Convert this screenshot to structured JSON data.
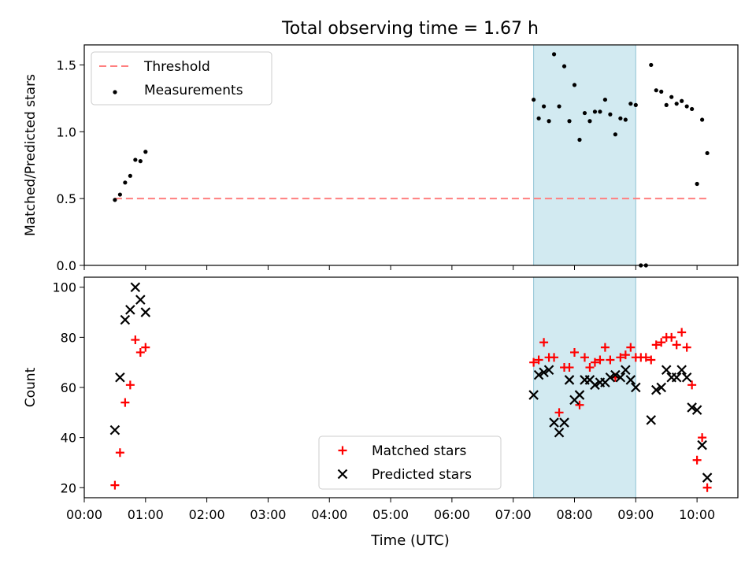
{
  "title": "Total observing time = 1.67 h",
  "xlabel": "Time (UTC)",
  "x_ticks": [
    "00:00",
    "01:00",
    "02:00",
    "03:00",
    "04:00",
    "05:00",
    "06:00",
    "07:00",
    "08:00",
    "09:00",
    "10:00"
  ],
  "colors": {
    "threshold": "#ff7f7f",
    "matched": "#ff0000",
    "predicted": "#000000",
    "measurements": "#000000",
    "shaded_window": "#add8e6"
  },
  "chart_data": [
    {
      "type": "scatter",
      "ylabel": "Matched/Predicted stars",
      "xlim": [
        "00:00",
        "10:40"
      ],
      "ylim": [
        0,
        1.65
      ],
      "y_ticks": [
        "0.0",
        "0.5",
        "1.0",
        "1.5"
      ],
      "y_tick_values": [
        0,
        0.5,
        1.0,
        1.5
      ],
      "shaded_window": [
        "07:20",
        "09:00"
      ],
      "threshold": {
        "name": "Threshold",
        "value": 0.5,
        "from": "00:30",
        "to": "10:10",
        "style": "dashed"
      },
      "legend_position": "upper-left",
      "legend": [
        "Threshold",
        "Measurements"
      ],
      "series": [
        {
          "name": "Measurements",
          "marker": "dot",
          "points": [
            [
              "00:30",
              0.49
            ],
            [
              "00:35",
              0.53
            ],
            [
              "00:40",
              0.62
            ],
            [
              "00:45",
              0.67
            ],
            [
              "00:50",
              0.79
            ],
            [
              "00:55",
              0.78
            ],
            [
              "01:00",
              0.85
            ],
            [
              "07:20",
              1.24
            ],
            [
              "07:25",
              1.1
            ],
            [
              "07:30",
              1.19
            ],
            [
              "07:35",
              1.08
            ],
            [
              "07:40",
              1.58
            ],
            [
              "07:45",
              1.19
            ],
            [
              "07:50",
              1.49
            ],
            [
              "07:55",
              1.08
            ],
            [
              "08:00",
              1.35
            ],
            [
              "08:05",
              0.94
            ],
            [
              "08:10",
              1.14
            ],
            [
              "08:15",
              1.08
            ],
            [
              "08:20",
              1.15
            ],
            [
              "08:25",
              1.15
            ],
            [
              "08:30",
              1.24
            ],
            [
              "08:35",
              1.13
            ],
            [
              "08:40",
              0.98
            ],
            [
              "08:45",
              1.1
            ],
            [
              "08:50",
              1.09
            ],
            [
              "08:55",
              1.21
            ],
            [
              "09:00",
              1.2
            ],
            [
              "09:05",
              0.0
            ],
            [
              "09:10",
              0.0
            ],
            [
              "09:15",
              1.5
            ],
            [
              "09:20",
              1.31
            ],
            [
              "09:25",
              1.3
            ],
            [
              "09:30",
              1.2
            ],
            [
              "09:35",
              1.26
            ],
            [
              "09:40",
              1.21
            ],
            [
              "09:45",
              1.23
            ],
            [
              "09:50",
              1.19
            ],
            [
              "09:55",
              1.17
            ],
            [
              "10:00",
              0.61
            ],
            [
              "10:05",
              1.09
            ],
            [
              "10:10",
              0.84
            ]
          ]
        }
      ]
    },
    {
      "type": "scatter",
      "ylabel": "Count",
      "xlim": [
        "00:00",
        "10:40"
      ],
      "ylim": [
        16,
        104
      ],
      "y_ticks": [
        "20",
        "40",
        "60",
        "80",
        "100"
      ],
      "y_tick_values": [
        20,
        40,
        60,
        80,
        100
      ],
      "shaded_window": [
        "07:20",
        "09:00"
      ],
      "legend_position": "lower-center",
      "legend": [
        "Matched stars",
        "Predicted stars"
      ],
      "series": [
        {
          "name": "Matched stars",
          "marker": "plus",
          "points": [
            [
              "00:30",
              21
            ],
            [
              "00:35",
              34
            ],
            [
              "00:40",
              54
            ],
            [
              "00:45",
              61
            ],
            [
              "00:50",
              79
            ],
            [
              "00:55",
              74
            ],
            [
              "01:00",
              76
            ],
            [
              "07:20",
              70
            ],
            [
              "07:25",
              71
            ],
            [
              "07:30",
              78
            ],
            [
              "07:35",
              72
            ],
            [
              "07:40",
              72
            ],
            [
              "07:45",
              50
            ],
            [
              "07:50",
              68
            ],
            [
              "07:55",
              68
            ],
            [
              "08:00",
              74
            ],
            [
              "08:05",
              53
            ],
            [
              "08:10",
              72
            ],
            [
              "08:15",
              68
            ],
            [
              "08:20",
              70
            ],
            [
              "08:25",
              71
            ],
            [
              "08:30",
              76
            ],
            [
              "08:35",
              71
            ],
            [
              "08:40",
              64
            ],
            [
              "08:45",
              72
            ],
            [
              "08:50",
              73
            ],
            [
              "08:55",
              76
            ],
            [
              "09:00",
              72
            ],
            [
              "09:05",
              72
            ],
            [
              "09:10",
              72
            ],
            [
              "09:15",
              71
            ],
            [
              "09:20",
              77
            ],
            [
              "09:25",
              78
            ],
            [
              "09:30",
              80
            ],
            [
              "09:35",
              80
            ],
            [
              "09:40",
              77
            ],
            [
              "09:45",
              82
            ],
            [
              "09:50",
              76
            ],
            [
              "09:55",
              61
            ],
            [
              "10:00",
              31
            ],
            [
              "10:05",
              40
            ],
            [
              "10:10",
              20
            ]
          ]
        },
        {
          "name": "Predicted stars",
          "marker": "x",
          "points": [
            [
              "00:30",
              43
            ],
            [
              "00:35",
              64
            ],
            [
              "00:40",
              87
            ],
            [
              "00:45",
              91
            ],
            [
              "00:50",
              100
            ],
            [
              "00:55",
              95
            ],
            [
              "01:00",
              90
            ],
            [
              "07:20",
              57
            ],
            [
              "07:25",
              65
            ],
            [
              "07:30",
              66
            ],
            [
              "07:35",
              67
            ],
            [
              "07:40",
              46
            ],
            [
              "07:45",
              42
            ],
            [
              "07:50",
              46
            ],
            [
              "07:55",
              63
            ],
            [
              "08:00",
              55
            ],
            [
              "08:05",
              57
            ],
            [
              "08:10",
              63
            ],
            [
              "08:15",
              63
            ],
            [
              "08:20",
              61
            ],
            [
              "08:25",
              62
            ],
            [
              "08:30",
              62
            ],
            [
              "08:35",
              64
            ],
            [
              "08:40",
              65
            ],
            [
              "08:45",
              64
            ],
            [
              "08:50",
              67
            ],
            [
              "08:55",
              63
            ],
            [
              "09:00",
              60
            ],
            [
              "09:15",
              47
            ],
            [
              "09:20",
              59
            ],
            [
              "09:25",
              60
            ],
            [
              "09:30",
              67
            ],
            [
              "09:35",
              64
            ],
            [
              "09:40",
              64
            ],
            [
              "09:45",
              67
            ],
            [
              "09:50",
              64
            ],
            [
              "09:55",
              52
            ],
            [
              "10:00",
              51
            ],
            [
              "10:05",
              37
            ],
            [
              "10:10",
              24
            ]
          ]
        }
      ]
    }
  ]
}
